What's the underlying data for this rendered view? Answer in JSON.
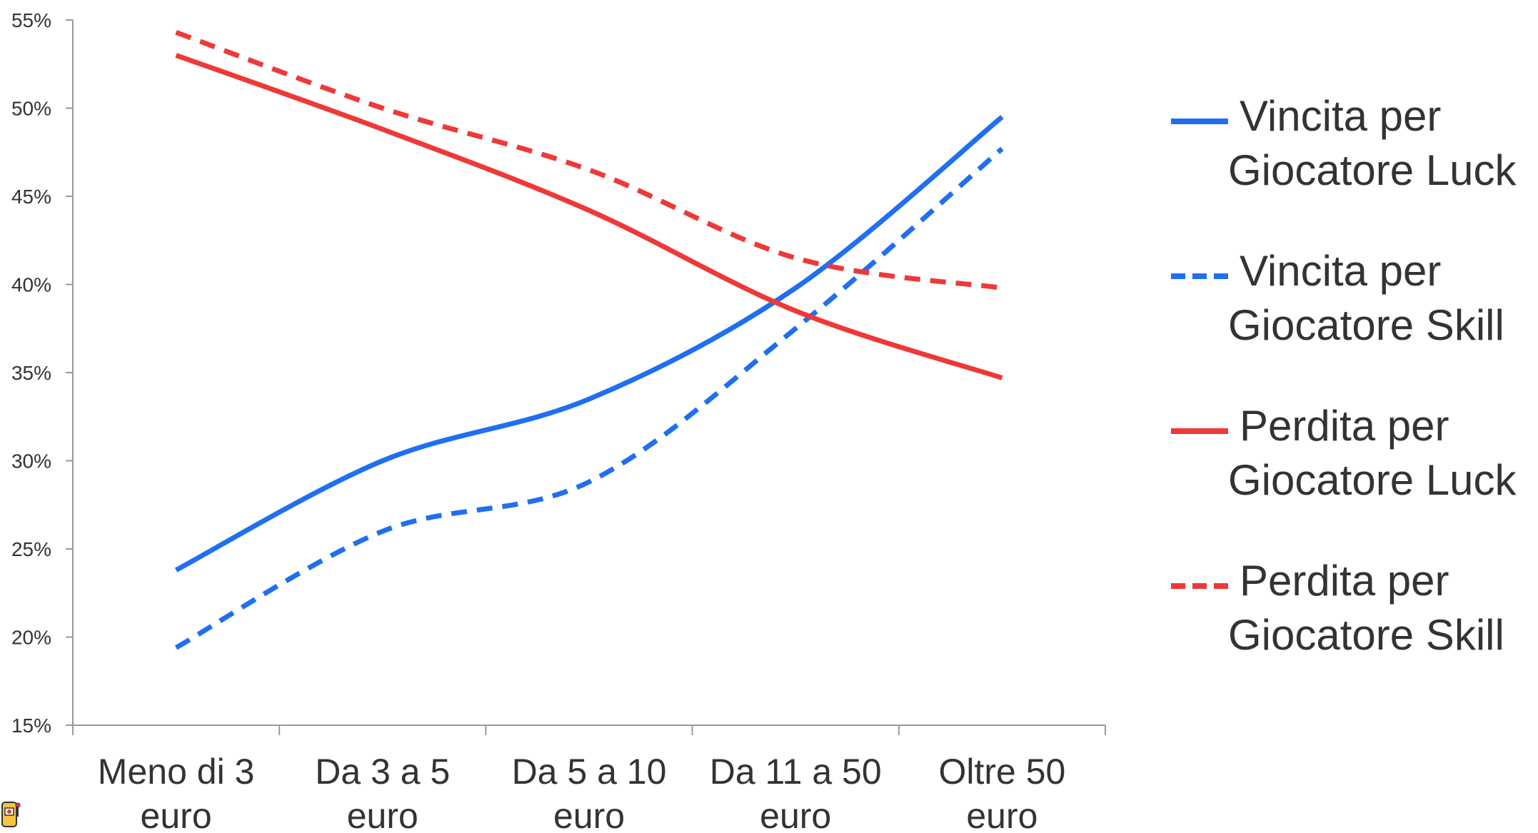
{
  "chart_data": {
    "type": "line",
    "categories": [
      [
        "Meno di 3",
        "euro"
      ],
      [
        "Da 3 a 5",
        "euro"
      ],
      [
        "Da 5 a 10",
        "euro"
      ],
      [
        "Da 11 a 50",
        "euro"
      ],
      [
        "Oltre 50",
        "euro"
      ]
    ],
    "ylim": [
      15,
      55
    ],
    "yticks": [
      15,
      20,
      25,
      30,
      35,
      40,
      45,
      50,
      55
    ],
    "ytick_labels": [
      "15%",
      "20%",
      "25%",
      "30%",
      "35%",
      "40%",
      "45%",
      "50%",
      "55%"
    ],
    "series": [
      {
        "name_lines": [
          "Vincita per",
          "Giocatore Luck"
        ],
        "values": [
          23.8,
          30.0,
          33.5,
          39.8,
          49.5
        ],
        "color": "#1f6ff2",
        "dashed": false
      },
      {
        "name_lines": [
          "Vincita per",
          "Giocatore Skill"
        ],
        "values": [
          19.4,
          26.0,
          28.8,
          37.5,
          47.7
        ],
        "color": "#1f6ff2",
        "dashed": true
      },
      {
        "name_lines": [
          "Perdita per",
          "Giocatore Luck"
        ],
        "values": [
          53.0,
          48.8,
          44.2,
          38.5,
          34.7
        ],
        "color": "#ef3838",
        "dashed": false
      },
      {
        "name_lines": [
          "Perdita per",
          "Giocatore Skill"
        ],
        "values": [
          54.3,
          50.0,
          46.5,
          41.5,
          39.8
        ],
        "color": "#ef3838",
        "dashed": true
      }
    ],
    "grid": false,
    "legend_position": "right"
  },
  "logo": {
    "icon": "slot-machine-icon"
  }
}
